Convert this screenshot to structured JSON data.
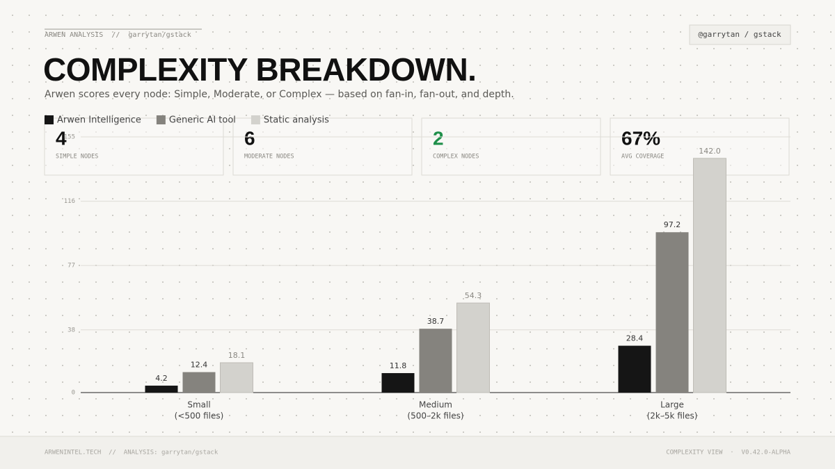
{
  "header": {
    "breadcrumb": "ARWEN ANALYSIS  //  garrytan/gstack",
    "badge": "@garrytan / gstack"
  },
  "title": "COMPLEXITY BREAKDOWN.",
  "subtitle": "Arwen scores every node: Simple, Moderate, or Complex — based on fan-in, fan-out, and depth.",
  "stats": [
    {
      "value": "4",
      "label": "SIMPLE NODES"
    },
    {
      "value": "6",
      "label": "MODERATE NODES"
    },
    {
      "value": "2",
      "label": "COMPLEX NODES"
    },
    {
      "value": "67%",
      "label": "AVG COVERAGE"
    }
  ],
  "chart_data": {
    "type": "bar",
    "categories": [
      "Small",
      "Medium",
      "Large"
    ],
    "category_sublabels": [
      "(<500 files)",
      "(500–2k files)",
      "(2k–5k files)"
    ],
    "series": [
      {
        "name": "Arwen Intelligence",
        "color": "#151515",
        "values": [
          4.2,
          11.8,
          28.4
        ]
      },
      {
        "name": "Generic AI tool",
        "color": "#85837e",
        "values": [
          12.4,
          38.7,
          97.2
        ]
      },
      {
        "name": "Static analysis",
        "color": "#d3d2cd",
        "values": [
          18.1,
          54.3,
          142.0
        ],
        "value_labels": [
          "18.1",
          "54.3",
          "142.0"
        ]
      }
    ],
    "ylim": [
      0,
      155
    ],
    "yticks": [
      0,
      38,
      77,
      116,
      155
    ],
    "grid": true,
    "legend": "top-left"
  },
  "footer": {
    "left": "ARWENINTEL.TECH  //  ANALYSIS: garrytan/gstack",
    "right": "COMPLEXITY VIEW  ·  V0.42.0-ALPHA"
  }
}
